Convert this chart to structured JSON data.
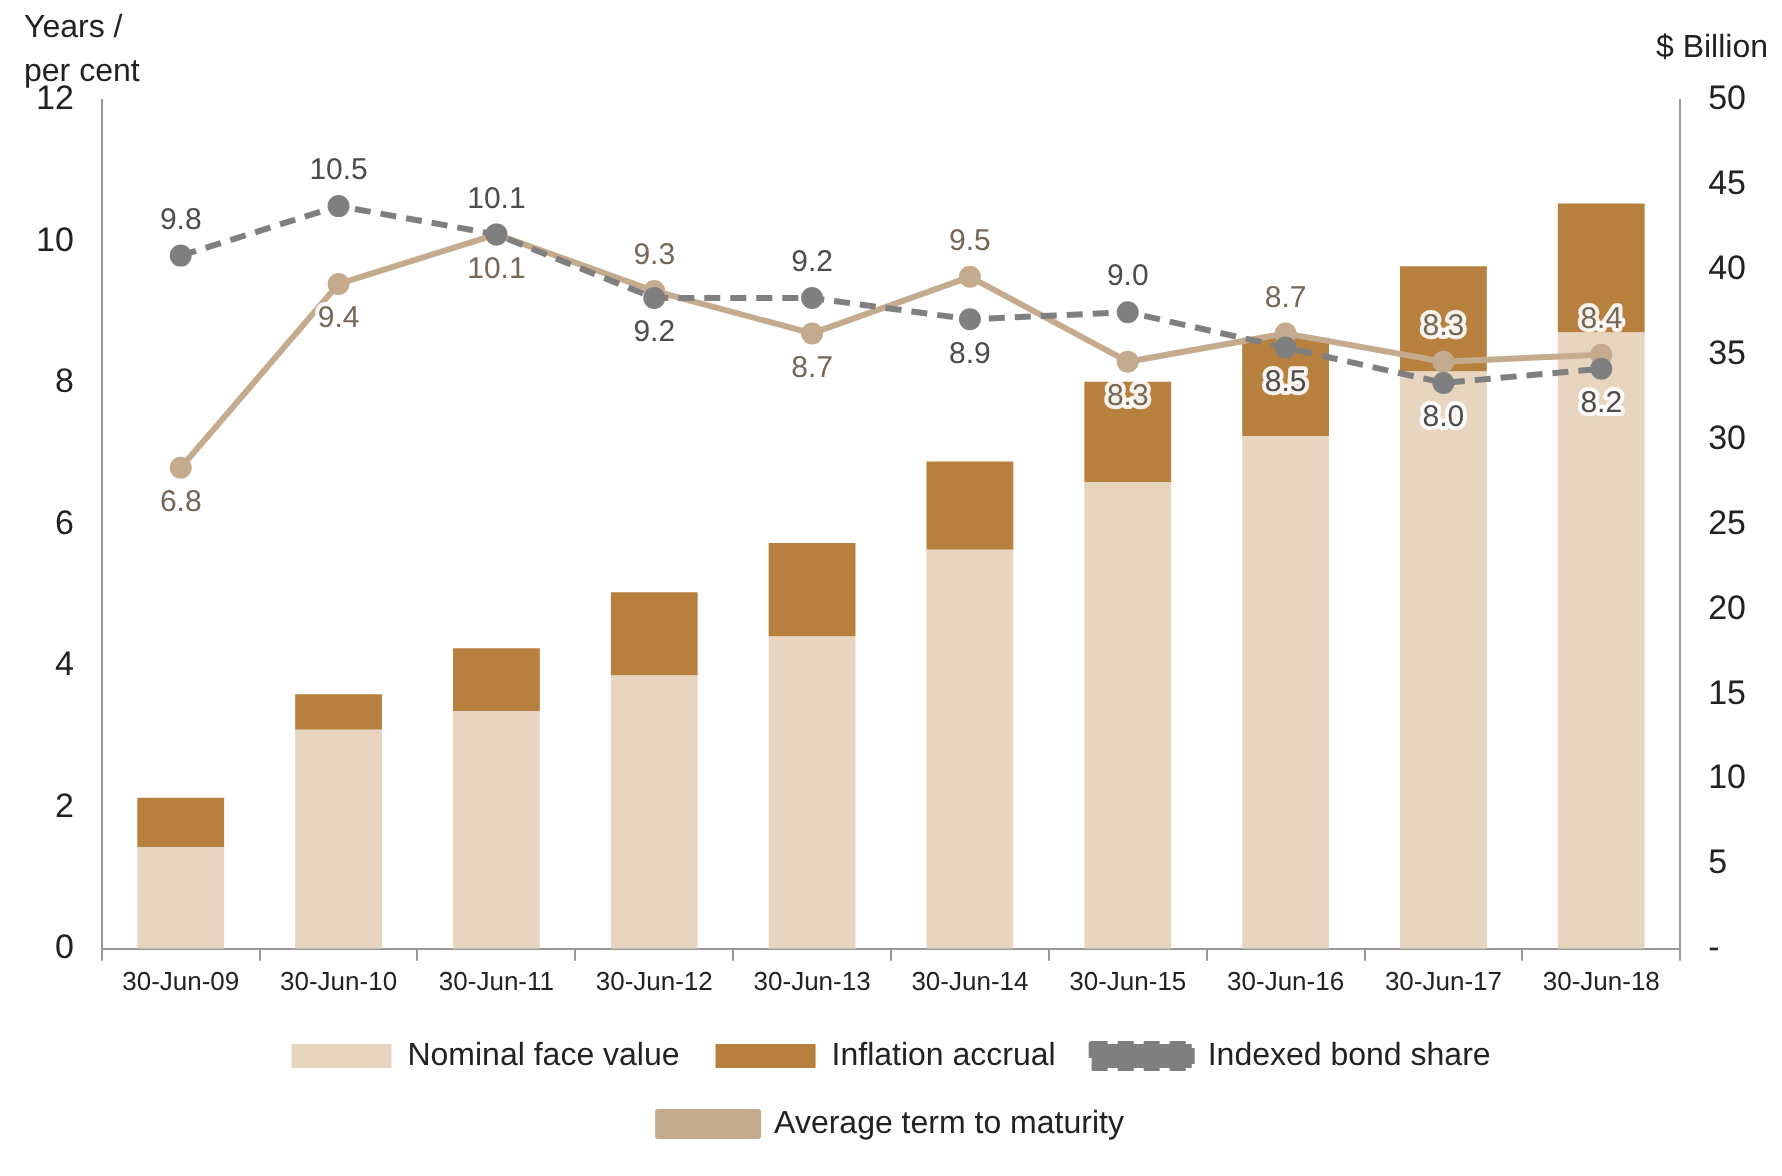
{
  "chart_data": {
    "type": "bar",
    "ylabel": "Years / per cent",
    "y2label": "$ Billion",
    "categories": [
      "30-Jun-09",
      "30-Jun-10",
      "30-Jun-11",
      "30-Jun-12",
      "30-Jun-13",
      "30-Jun-14",
      "30-Jun-15",
      "30-Jun-16",
      "30-Jun-17",
      "30-Jun-18"
    ],
    "stacked": true,
    "legend": "bottom",
    "grid": false,
    "ylim": [
      0,
      12
    ],
    "yticks": [
      0,
      2,
      4,
      6,
      8,
      10,
      12
    ],
    "y2lim": [
      0,
      50
    ],
    "y2ticks": [
      {
        "value": 0,
        "label": "-"
      },
      5,
      10,
      15,
      20,
      25,
      30,
      35,
      40,
      45,
      50
    ],
    "series": [
      {
        "name": "Nominal face value",
        "axis": "y2",
        "color": "#e8d5c0",
        "values": [
          6.0,
          12.9,
          14.0,
          16.1,
          18.4,
          23.5,
          27.5,
          30.2,
          34.0,
          36.3
        ]
      },
      {
        "name": "Inflation accrual",
        "axis": "y2",
        "color": "#b8803e",
        "values": [
          2.9,
          2.1,
          3.7,
          4.9,
          5.5,
          5.2,
          5.9,
          5.8,
          6.2,
          7.6
        ]
      },
      {
        "name": "Indexed bond share",
        "type": "line",
        "line_style": "dashed",
        "marker": "circle",
        "color": "#7f7f7f",
        "values": [
          9.8,
          10.5,
          10.1,
          9.2,
          9.2,
          8.9,
          9.0,
          8.5,
          8.0,
          8.2
        ],
        "value_labels": [
          "9.8",
          "10.5",
          "10.1",
          "9.2",
          "9.2",
          "8.9",
          "9.0",
          "8.5",
          "8.0",
          "8.2"
        ]
      },
      {
        "name": "Average term to maturity",
        "type": "line",
        "line_style": "solid",
        "marker": "circle",
        "color": "#c4ab8e",
        "values": [
          6.8,
          9.4,
          10.1,
          9.3,
          8.7,
          9.5,
          8.3,
          8.7,
          8.3,
          8.4
        ],
        "value_labels": [
          "6.8",
          "9.4",
          "10.1",
          "9.3",
          "8.7",
          "9.5",
          "8.3",
          "8.7",
          "8.3",
          "8.4"
        ]
      }
    ]
  }
}
